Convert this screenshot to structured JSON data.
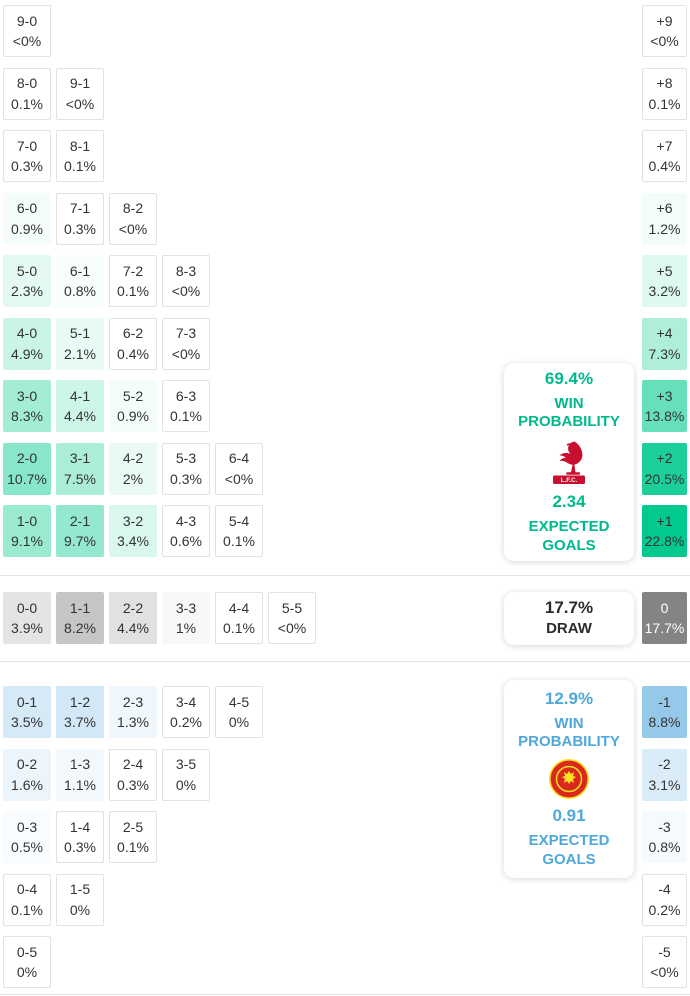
{
  "theme": {
    "home_color": "#00c98e",
    "home_accent": "#00b98c",
    "draw_color": "#828282",
    "draw_text": "#2b2b2b",
    "away_color": "#4aa2d9",
    "away_accent": "#4fa8da",
    "cell_text": "#333333",
    "diff_dark_text": "#ffffff"
  },
  "chart_data": {
    "type": "heatmap",
    "home_rows": [
      {
        "diff": "+9",
        "diff_pct": "<0%",
        "diff_value": 0,
        "cells": [
          {
            "score": "9-0",
            "pct": "<0%",
            "value": 0
          }
        ]
      },
      {
        "diff": "+8",
        "diff_pct": "0.1%",
        "diff_value": 0.1,
        "cells": [
          {
            "score": "8-0",
            "pct": "0.1%",
            "value": 0.1
          },
          {
            "score": "9-1",
            "pct": "<0%",
            "value": 0
          }
        ]
      },
      {
        "diff": "+7",
        "diff_pct": "0.4%",
        "diff_value": 0.4,
        "cells": [
          {
            "score": "7-0",
            "pct": "0.3%",
            "value": 0.3
          },
          {
            "score": "8-1",
            "pct": "0.1%",
            "value": 0.1
          }
        ]
      },
      {
        "diff": "+6",
        "diff_pct": "1.2%",
        "diff_value": 1.2,
        "cells": [
          {
            "score": "6-0",
            "pct": "0.9%",
            "value": 0.9
          },
          {
            "score": "7-1",
            "pct": "0.3%",
            "value": 0.3
          },
          {
            "score": "8-2",
            "pct": "<0%",
            "value": 0
          }
        ]
      },
      {
        "diff": "+5",
        "diff_pct": "3.2%",
        "diff_value": 3.2,
        "cells": [
          {
            "score": "5-0",
            "pct": "2.3%",
            "value": 2.3
          },
          {
            "score": "6-1",
            "pct": "0.8%",
            "value": 0.8
          },
          {
            "score": "7-2",
            "pct": "0.1%",
            "value": 0.1
          },
          {
            "score": "8-3",
            "pct": "<0%",
            "value": 0
          }
        ]
      },
      {
        "diff": "+4",
        "diff_pct": "7.3%",
        "diff_value": 7.3,
        "cells": [
          {
            "score": "4-0",
            "pct": "4.9%",
            "value": 4.9
          },
          {
            "score": "5-1",
            "pct": "2.1%",
            "value": 2.1
          },
          {
            "score": "6-2",
            "pct": "0.4%",
            "value": 0.4
          },
          {
            "score": "7-3",
            "pct": "<0%",
            "value": 0
          }
        ]
      },
      {
        "diff": "+3",
        "diff_pct": "13.8%",
        "diff_value": 13.8,
        "cells": [
          {
            "score": "3-0",
            "pct": "8.3%",
            "value": 8.3
          },
          {
            "score": "4-1",
            "pct": "4.4%",
            "value": 4.4
          },
          {
            "score": "5-2",
            "pct": "0.9%",
            "value": 0.9
          },
          {
            "score": "6-3",
            "pct": "0.1%",
            "value": 0.1
          }
        ]
      },
      {
        "diff": "+2",
        "diff_pct": "20.5%",
        "diff_value": 20.5,
        "cells": [
          {
            "score": "2-0",
            "pct": "10.7%",
            "value": 10.7
          },
          {
            "score": "3-1",
            "pct": "7.5%",
            "value": 7.5
          },
          {
            "score": "4-2",
            "pct": "2%",
            "value": 2
          },
          {
            "score": "5-3",
            "pct": "0.3%",
            "value": 0.3
          },
          {
            "score": "6-4",
            "pct": "<0%",
            "value": 0
          }
        ]
      },
      {
        "diff": "+1",
        "diff_pct": "22.8%",
        "diff_value": 22.8,
        "cells": [
          {
            "score": "1-0",
            "pct": "9.1%",
            "value": 9.1
          },
          {
            "score": "2-1",
            "pct": "9.7%",
            "value": 9.7
          },
          {
            "score": "3-2",
            "pct": "3.4%",
            "value": 3.4
          },
          {
            "score": "4-3",
            "pct": "0.6%",
            "value": 0.6
          },
          {
            "score": "5-4",
            "pct": "0.1%",
            "value": 0.1
          }
        ]
      }
    ],
    "draw_row": {
      "diff": "0",
      "diff_pct": "17.7%",
      "diff_value": 17.7,
      "cells": [
        {
          "score": "0-0",
          "pct": "3.9%",
          "value": 3.9
        },
        {
          "score": "1-1",
          "pct": "8.2%",
          "value": 8.2
        },
        {
          "score": "2-2",
          "pct": "4.4%",
          "value": 4.4
        },
        {
          "score": "3-3",
          "pct": "1%",
          "value": 1
        },
        {
          "score": "4-4",
          "pct": "0.1%",
          "value": 0.1
        },
        {
          "score": "5-5",
          "pct": "<0%",
          "value": 0
        }
      ]
    },
    "away_rows": [
      {
        "diff": "-1",
        "diff_pct": "8.8%",
        "diff_value": 8.8,
        "cells": [
          {
            "score": "0-1",
            "pct": "3.5%",
            "value": 3.5
          },
          {
            "score": "1-2",
            "pct": "3.7%",
            "value": 3.7
          },
          {
            "score": "2-3",
            "pct": "1.3%",
            "value": 1.3
          },
          {
            "score": "3-4",
            "pct": "0.2%",
            "value": 0.2
          },
          {
            "score": "4-5",
            "pct": "0%",
            "value": 0
          }
        ]
      },
      {
        "diff": "-2",
        "diff_pct": "3.1%",
        "diff_value": 3.1,
        "cells": [
          {
            "score": "0-2",
            "pct": "1.6%",
            "value": 1.6
          },
          {
            "score": "1-3",
            "pct": "1.1%",
            "value": 1.1
          },
          {
            "score": "2-4",
            "pct": "0.3%",
            "value": 0.3
          },
          {
            "score": "3-5",
            "pct": "0%",
            "value": 0
          }
        ]
      },
      {
        "diff": "-3",
        "diff_pct": "0.8%",
        "diff_value": 0.8,
        "cells": [
          {
            "score": "0-3",
            "pct": "0.5%",
            "value": 0.5
          },
          {
            "score": "1-4",
            "pct": "0.3%",
            "value": 0.3
          },
          {
            "score": "2-5",
            "pct": "0.1%",
            "value": 0.1
          }
        ]
      },
      {
        "diff": "-4",
        "diff_pct": "0.2%",
        "diff_value": 0.2,
        "cells": [
          {
            "score": "0-4",
            "pct": "0.1%",
            "value": 0.1
          },
          {
            "score": "1-5",
            "pct": "0%",
            "value": 0
          }
        ]
      },
      {
        "diff": "-5",
        "diff_pct": "<0%",
        "diff_value": 0,
        "cells": [
          {
            "score": "0-5",
            "pct": "0%",
            "value": 0
          }
        ]
      }
    ]
  },
  "summary": {
    "home": {
      "win_pct": "69.4%",
      "win_label": "WIN PROBABILITY",
      "crest": "liverpool-crest",
      "crest_text": "L.F.C.",
      "xg": "2.34",
      "xg_label": "EXPECTED GOALS"
    },
    "draw": {
      "pct": "17.7%",
      "label": "DRAW"
    },
    "away": {
      "win_pct": "12.9%",
      "win_label": "WIN PROBABILITY",
      "crest": "manchester-united-crest",
      "xg": "0.91",
      "xg_label": "EXPECTED GOALS"
    }
  }
}
